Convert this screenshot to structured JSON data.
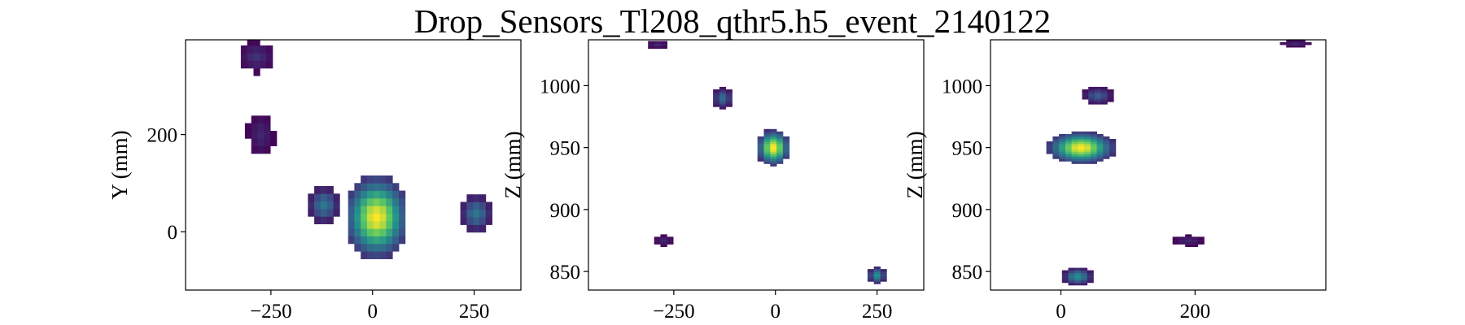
{
  "figure": {
    "title": "Drop_Sensors_Tl208_qthr5.h5_event_2140122"
  },
  "colormap": {
    "name": "viridis",
    "stops": [
      "#440154",
      "#3b528b",
      "#21918c",
      "#5ec962",
      "#fde725"
    ]
  },
  "chart_data": [
    {
      "type": "heatmap",
      "title": "",
      "xlabel": "",
      "ylabel": "Y (mm)",
      "xlim": [
        -460,
        365
      ],
      "ylim": [
        -120,
        395
      ],
      "xticks": [
        -250,
        0,
        250
      ],
      "yticks": [
        0,
        200
      ],
      "cell_width": 15.6,
      "cell_height": 15.6,
      "clusters": [
        {
          "x": 10,
          "y": 30,
          "wx": 55,
          "wy": 60,
          "peak": 1.0,
          "r": 55
        },
        {
          "x": -120,
          "y": 55,
          "wx": 28,
          "wy": 28,
          "peak": 0.4,
          "r": 32
        },
        {
          "x": 255,
          "y": 38,
          "wx": 28,
          "wy": 28,
          "peak": 0.4,
          "r": 32
        },
        {
          "x": -285,
          "y": 360,
          "wx": 30,
          "wy": 22,
          "peak": 0.15,
          "r": 34
        },
        {
          "x": -275,
          "y": 200,
          "wx": 22,
          "wy": 30,
          "peak": 0.12,
          "r": 32
        }
      ]
    },
    {
      "type": "heatmap",
      "title": "",
      "xlabel": "",
      "ylabel": "Z (mm)",
      "xlim": [
        -460,
        365
      ],
      "ylim": [
        835,
        1037
      ],
      "xticks": [
        -250,
        0,
        250
      ],
      "yticks": [
        850,
        900,
        950,
        1000
      ],
      "cell_width": 15.6,
      "cell_height": 2,
      "clusters": [
        {
          "x": -5,
          "y": 950,
          "wx": 28,
          "wy": 10,
          "peak": 1.0,
          "r": 45
        },
        {
          "x": -130,
          "y": 990,
          "wx": 18,
          "wy": 6,
          "peak": 0.35,
          "r": 28
        },
        {
          "x": 250,
          "y": 847,
          "wx": 16,
          "wy": 5,
          "peak": 0.5,
          "r": 24
        },
        {
          "x": -290,
          "y": 1033,
          "wx": 20,
          "wy": 2,
          "peak": 0.12,
          "r": 24
        },
        {
          "x": -275,
          "y": 875,
          "wx": 18,
          "wy": 3,
          "peak": 0.12,
          "r": 24
        }
      ]
    },
    {
      "type": "heatmap",
      "title": "",
      "xlabel": "",
      "ylabel": "Z (mm)",
      "xlim": [
        -105,
        395
      ],
      "ylim": [
        835,
        1037
      ],
      "xticks": [
        0,
        200
      ],
      "yticks": [
        850,
        900,
        950,
        1000
      ],
      "cell_width": 9.4,
      "cell_height": 2,
      "clusters": [
        {
          "x": 30,
          "y": 950,
          "wx": 35,
          "wy": 9,
          "peak": 1.0,
          "r": 55
        },
        {
          "x": 55,
          "y": 992,
          "wx": 16,
          "wy": 5,
          "peak": 0.3,
          "r": 24
        },
        {
          "x": 25,
          "y": 846,
          "wx": 16,
          "wy": 5,
          "peak": 0.5,
          "r": 24
        },
        {
          "x": 190,
          "y": 875,
          "wx": 16,
          "wy": 3,
          "peak": 0.12,
          "r": 22
        },
        {
          "x": 350,
          "y": 1034,
          "wx": 16,
          "wy": 2,
          "peak": 0.12,
          "r": 20
        }
      ]
    }
  ]
}
